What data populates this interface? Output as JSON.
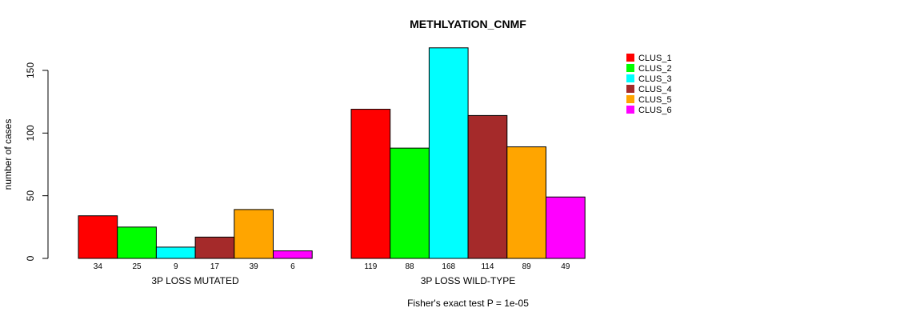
{
  "chart_data": {
    "type": "bar",
    "title": "METHLYATION_CNMF",
    "ylabel": "number of cases",
    "ylim": [
      0,
      150
    ],
    "yticks": [
      0,
      50,
      100,
      150
    ],
    "footnote": "Fisher's exact test P = 1e-05",
    "series": [
      {
        "name": "CLUS_1",
        "color": "#ff0000"
      },
      {
        "name": "CLUS_2",
        "color": "#00ff00"
      },
      {
        "name": "CLUS_3",
        "color": "#00ffff"
      },
      {
        "name": "CLUS_4",
        "color": "#a52a2a"
      },
      {
        "name": "CLUS_5",
        "color": "#ffa500"
      },
      {
        "name": "CLUS_6",
        "color": "#ff00ff"
      }
    ],
    "groups": [
      {
        "label": "3P LOSS MUTATED",
        "values": [
          34,
          25,
          9,
          17,
          39,
          6
        ]
      },
      {
        "label": "3P LOSS WILD-TYPE",
        "values": [
          119,
          88,
          168,
          114,
          89,
          49
        ]
      }
    ]
  }
}
